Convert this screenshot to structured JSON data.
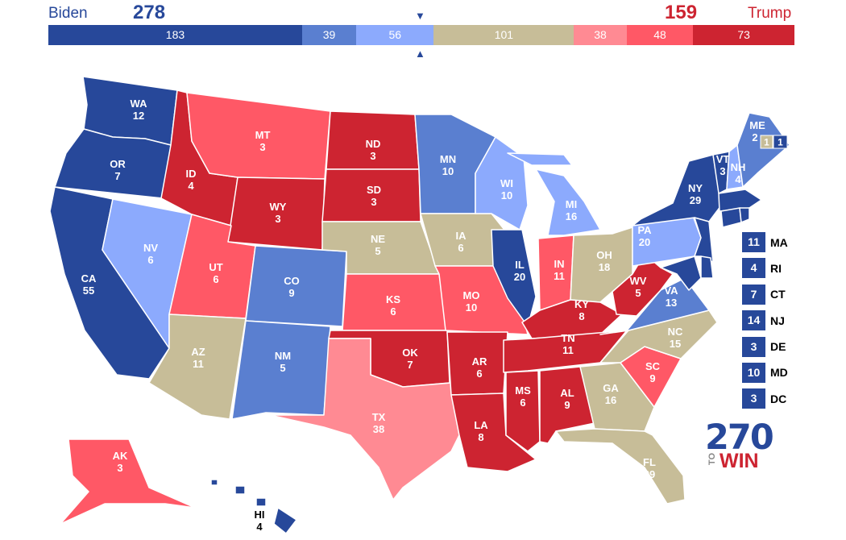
{
  "header": {
    "biden_name": "Biden",
    "biden_total": "278",
    "trump_total": "159",
    "trump_name": "Trump"
  },
  "tally": [
    {
      "value": 183,
      "color": "#27489a",
      "name": "safe-dem"
    },
    {
      "value": 39,
      "color": "#5a7fd0",
      "name": "likely-dem"
    },
    {
      "value": 56,
      "color": "#8caafd",
      "name": "lean-dem"
    },
    {
      "value": 101,
      "color": "#c7bd98",
      "name": "tossup"
    },
    {
      "value": 38,
      "color": "#ff8a93",
      "name": "lean-rep"
    },
    {
      "value": 48,
      "color": "#ff5866",
      "name": "likely-rep"
    },
    {
      "value": 73,
      "color": "#cd2431",
      "name": "safe-rep"
    }
  ],
  "colors": {
    "safe_dem": "#27489a",
    "likely_dem": "#5a7fd0",
    "lean_dem": "#8caafd",
    "tossup": "#c7bd98",
    "lean_rep": "#ff8a93",
    "likely_rep": "#ff5866",
    "safe_rep": "#cd2431"
  },
  "states": [
    {
      "abbr": "WA",
      "ev": "12",
      "cat": "safe_dem"
    },
    {
      "abbr": "OR",
      "ev": "7",
      "cat": "safe_dem"
    },
    {
      "abbr": "CA",
      "ev": "55",
      "cat": "safe_dem"
    },
    {
      "abbr": "NV",
      "ev": "6",
      "cat": "lean_dem"
    },
    {
      "abbr": "ID",
      "ev": "4",
      "cat": "safe_rep"
    },
    {
      "abbr": "MT",
      "ev": "3",
      "cat": "likely_rep"
    },
    {
      "abbr": "WY",
      "ev": "3",
      "cat": "safe_rep"
    },
    {
      "abbr": "UT",
      "ev": "6",
      "cat": "likely_rep"
    },
    {
      "abbr": "AZ",
      "ev": "11",
      "cat": "tossup"
    },
    {
      "abbr": "CO",
      "ev": "9",
      "cat": "likely_dem"
    },
    {
      "abbr": "NM",
      "ev": "5",
      "cat": "likely_dem"
    },
    {
      "abbr": "ND",
      "ev": "3",
      "cat": "safe_rep"
    },
    {
      "abbr": "SD",
      "ev": "3",
      "cat": "safe_rep"
    },
    {
      "abbr": "NE",
      "ev": "5",
      "cat": "tossup"
    },
    {
      "abbr": "KS",
      "ev": "6",
      "cat": "likely_rep"
    },
    {
      "abbr": "OK",
      "ev": "7",
      "cat": "safe_rep"
    },
    {
      "abbr": "TX",
      "ev": "38",
      "cat": "lean_rep"
    },
    {
      "abbr": "MN",
      "ev": "10",
      "cat": "likely_dem"
    },
    {
      "abbr": "IA",
      "ev": "6",
      "cat": "tossup"
    },
    {
      "abbr": "MO",
      "ev": "10",
      "cat": "likely_rep"
    },
    {
      "abbr": "AR",
      "ev": "6",
      "cat": "safe_rep"
    },
    {
      "abbr": "LA",
      "ev": "8",
      "cat": "safe_rep"
    },
    {
      "abbr": "WI",
      "ev": "10",
      "cat": "lean_dem"
    },
    {
      "abbr": "IL",
      "ev": "20",
      "cat": "safe_dem"
    },
    {
      "abbr": "MI",
      "ev": "16",
      "cat": "lean_dem"
    },
    {
      "abbr": "IN",
      "ev": "11",
      "cat": "likely_rep"
    },
    {
      "abbr": "OH",
      "ev": "18",
      "cat": "tossup"
    },
    {
      "abbr": "KY",
      "ev": "8",
      "cat": "safe_rep"
    },
    {
      "abbr": "TN",
      "ev": "11",
      "cat": "safe_rep"
    },
    {
      "abbr": "MS",
      "ev": "6",
      "cat": "safe_rep"
    },
    {
      "abbr": "AL",
      "ev": "9",
      "cat": "safe_rep"
    },
    {
      "abbr": "GA",
      "ev": "16",
      "cat": "tossup"
    },
    {
      "abbr": "FL",
      "ev": "29",
      "cat": "tossup"
    },
    {
      "abbr": "SC",
      "ev": "9",
      "cat": "likely_rep"
    },
    {
      "abbr": "NC",
      "ev": "15",
      "cat": "tossup"
    },
    {
      "abbr": "VA",
      "ev": "13",
      "cat": "likely_dem"
    },
    {
      "abbr": "WV",
      "ev": "5",
      "cat": "safe_rep"
    },
    {
      "abbr": "PA",
      "ev": "20",
      "cat": "lean_dem"
    },
    {
      "abbr": "NY",
      "ev": "29",
      "cat": "safe_dem"
    },
    {
      "abbr": "VT",
      "ev": "3",
      "cat": "safe_dem"
    },
    {
      "abbr": "NH",
      "ev": "4",
      "cat": "lean_dem"
    },
    {
      "abbr": "ME",
      "ev": "2",
      "cat": "likely_dem"
    },
    {
      "abbr": "ME-1",
      "ev": "1",
      "cat": "tossup"
    },
    {
      "abbr": "ME-2",
      "ev": "1",
      "cat": "safe_dem"
    },
    {
      "abbr": "AK",
      "ev": "3",
      "cat": "likely_rep"
    },
    {
      "abbr": "HI",
      "ev": "4",
      "cat": "safe_dem"
    }
  ],
  "small_states": [
    {
      "ev": "11",
      "abbr": "MA"
    },
    {
      "ev": "4",
      "abbr": "RI"
    },
    {
      "ev": "7",
      "abbr": "CT"
    },
    {
      "ev": "14",
      "abbr": "NJ"
    },
    {
      "ev": "3",
      "abbr": "DE"
    },
    {
      "ev": "10",
      "abbr": "MD"
    },
    {
      "ev": "3",
      "abbr": "DC"
    }
  ],
  "logo": {
    "number": "270",
    "to": "TO",
    "win": "WIN"
  }
}
